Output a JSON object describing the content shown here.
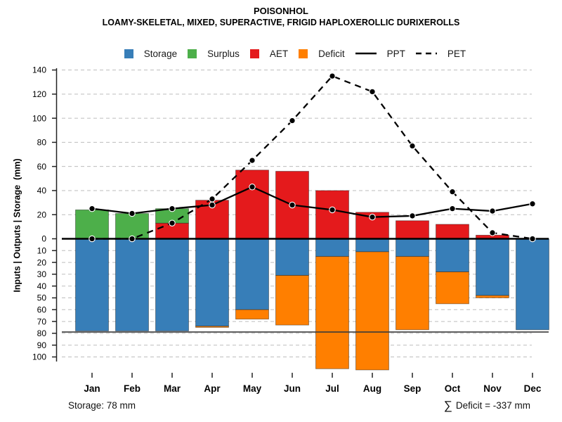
{
  "chart_data": {
    "type": "bar",
    "title": "POISONHOL",
    "subtitle": "LOAMY-SKELETAL, MIXED, SUPERACTIVE, FRIGID HAPLOXEROLLIC DURIXEROLLS",
    "ylabel": "Inputs | Outputs | Storage  (mm)",
    "categories": [
      "Jan",
      "Feb",
      "Mar",
      "Apr",
      "May",
      "Jun",
      "Jul",
      "Aug",
      "Sep",
      "Oct",
      "Nov",
      "Dec"
    ],
    "series": [
      {
        "name": "Storage",
        "type": "bar",
        "stack": "below-zero",
        "color": "#377EB8",
        "values": [
          78,
          78,
          78,
          74,
          60,
          31,
          15,
          11,
          15,
          28,
          48,
          77
        ]
      },
      {
        "name": "Deficit",
        "type": "bar",
        "stack": "below-zero",
        "color": "#FF7F00",
        "values": [
          0,
          0,
          0,
          1,
          8,
          42,
          95,
          100,
          62,
          27,
          2,
          0
        ]
      },
      {
        "name": "AET",
        "type": "bar",
        "stack": "above-zero",
        "color": "#E41A1C",
        "values": [
          0,
          0,
          13,
          32,
          57,
          56,
          40,
          22,
          15,
          12,
          3,
          0
        ]
      },
      {
        "name": "Surplus",
        "type": "bar",
        "stack": "above-zero",
        "color": "#4DAF4A",
        "values": [
          24,
          21,
          12,
          0,
          0,
          0,
          0,
          0,
          0,
          0,
          0,
          0
        ]
      },
      {
        "name": "PPT",
        "type": "line",
        "style": "solid",
        "color": "#000000",
        "values": [
          25,
          21,
          25,
          28,
          43,
          28,
          24,
          18,
          19,
          25,
          23,
          29
        ]
      },
      {
        "name": "PET",
        "type": "line",
        "style": "dashed",
        "color": "#000000",
        "values": [
          0,
          0,
          13,
          33,
          65,
          98,
          135,
          122,
          77,
          39,
          5,
          0
        ]
      }
    ],
    "axis": {
      "upper_ticks": [
        0,
        20,
        40,
        60,
        80,
        100,
        120,
        140
      ],
      "lower_ticks": [
        10,
        20,
        30,
        40,
        50,
        60,
        70,
        80,
        90,
        100
      ],
      "upper_max": 140,
      "lower_max": 100,
      "grid": true,
      "storage_capacity_line": 78
    },
    "legend": [
      {
        "label": "Storage",
        "swatch": "box",
        "color": "#377EB8"
      },
      {
        "label": "Surplus",
        "swatch": "box",
        "color": "#4DAF4A"
      },
      {
        "label": "AET",
        "swatch": "box",
        "color": "#E41A1C"
      },
      {
        "label": "Deficit",
        "swatch": "box",
        "color": "#FF7F00"
      },
      {
        "label": "PPT",
        "swatch": "solid-line",
        "color": "#000000"
      },
      {
        "label": "PET",
        "swatch": "dashed-line",
        "color": "#000000"
      }
    ],
    "annotations": {
      "storage_note": "Storage: 78 mm",
      "deficit_sigma": "∑",
      "deficit_note": "Deficit = -337 mm"
    }
  }
}
